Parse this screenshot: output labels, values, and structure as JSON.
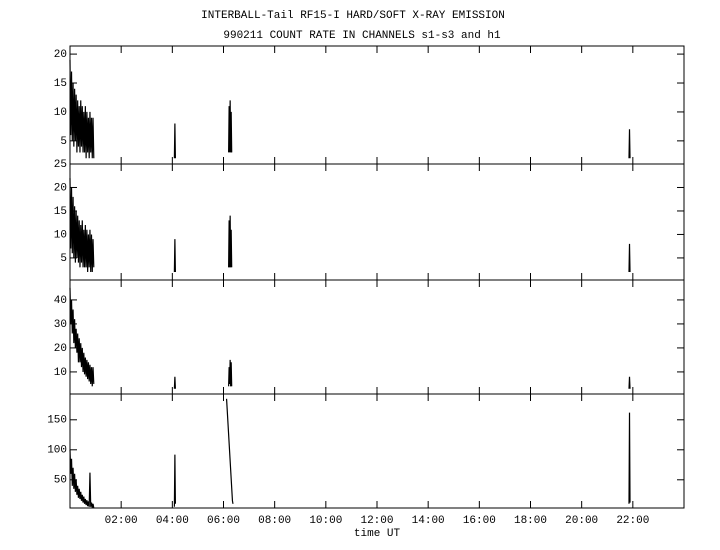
{
  "chart_data": [
    {
      "type": "line",
      "title": "INTERBALL-Tail RF15-I HARD/SOFT X-RAY EMISSION",
      "subtitle": "990211  COUNT RATE IN CHANNELS s1-s3 and h1",
      "xlim": [
        0,
        24
      ],
      "ylim": [
        1,
        21.4
      ],
      "yticks": [
        5,
        10,
        15,
        20
      ],
      "color": "#000000",
      "x": [
        0.0,
        0.03,
        0.06,
        0.09,
        0.12,
        0.15,
        0.18,
        0.21,
        0.24,
        0.27,
        0.3,
        0.33,
        0.36,
        0.39,
        0.42,
        0.45,
        0.48,
        0.51,
        0.54,
        0.57,
        0.6,
        0.63,
        0.66,
        0.69,
        0.72,
        0.75,
        0.78,
        0.81,
        0.84,
        0.87,
        0.9,
        0.93,
        1.0,
        4.08,
        4.1,
        4.12,
        5.0,
        6.2,
        6.22,
        6.24,
        6.26,
        6.28,
        6.3,
        6.32,
        10.0,
        21.85,
        21.87,
        21.89
      ],
      "values": [
        19,
        6,
        17,
        5,
        15,
        4,
        14,
        5,
        13,
        3,
        12,
        4,
        11,
        3,
        12,
        4,
        11,
        3,
        10,
        3,
        11,
        2,
        10,
        3,
        9,
        2,
        10,
        3,
        9,
        2,
        9,
        2,
        null,
        2,
        8,
        2,
        null,
        3,
        11,
        3,
        12,
        3,
        10,
        3,
        null,
        2,
        7,
        2
      ]
    },
    {
      "type": "line",
      "xlim": [
        0,
        24
      ],
      "ylim": [
        0.3,
        25
      ],
      "yticks": [
        5,
        10,
        15,
        20,
        25
      ],
      "color": "#000000",
      "x": [
        0.0,
        0.03,
        0.06,
        0.09,
        0.12,
        0.15,
        0.18,
        0.21,
        0.24,
        0.27,
        0.3,
        0.33,
        0.36,
        0.39,
        0.42,
        0.45,
        0.48,
        0.51,
        0.54,
        0.57,
        0.6,
        0.63,
        0.66,
        0.69,
        0.72,
        0.75,
        0.78,
        0.81,
        0.84,
        0.87,
        0.9,
        0.93,
        1.0,
        4.08,
        4.1,
        4.12,
        5.0,
        6.2,
        6.22,
        6.24,
        6.26,
        6.28,
        6.3,
        6.32,
        10.0,
        21.85,
        21.87,
        21.89
      ],
      "values": [
        22,
        7,
        20,
        6,
        18,
        5,
        16,
        4,
        15,
        5,
        14,
        4,
        13,
        3,
        12,
        4,
        13,
        3,
        11,
        3,
        12,
        3,
        11,
        2,
        10,
        3,
        11,
        2,
        10,
        2,
        9,
        3,
        null,
        2,
        9,
        2,
        null,
        3,
        13,
        3,
        14,
        3,
        11,
        3,
        null,
        2,
        8,
        2
      ]
    },
    {
      "type": "line",
      "xlim": [
        0,
        24
      ],
      "ylim": [
        0.8,
        48.3
      ],
      "yticks": [
        10,
        20,
        30,
        40
      ],
      "color": "#000000",
      "x": [
        0.0,
        0.03,
        0.06,
        0.09,
        0.12,
        0.15,
        0.18,
        0.21,
        0.24,
        0.27,
        0.3,
        0.33,
        0.36,
        0.39,
        0.42,
        0.45,
        0.48,
        0.51,
        0.54,
        0.57,
        0.6,
        0.63,
        0.66,
        0.69,
        0.72,
        0.75,
        0.78,
        0.81,
        0.84,
        0.87,
        0.9,
        0.93,
        1.0,
        4.08,
        4.1,
        4.12,
        5.0,
        6.2,
        6.22,
        6.24,
        6.26,
        6.28,
        6.3,
        6.32,
        10.0,
        21.85,
        21.87,
        21.89
      ],
      "values": [
        45,
        30,
        40,
        26,
        36,
        22,
        32,
        20,
        28,
        18,
        26,
        14,
        24,
        14,
        22,
        12,
        20,
        10,
        18,
        9,
        16,
        8,
        15,
        7,
        14,
        6,
        13,
        5,
        12,
        4,
        12,
        5,
        null,
        3,
        8,
        3,
        null,
        4,
        12,
        5,
        15,
        4,
        14,
        4,
        null,
        3,
        8,
        3
      ]
    },
    {
      "type": "line",
      "xlabel": "time UT",
      "xlim": [
        0,
        24
      ],
      "ylim": [
        3,
        193
      ],
      "yticks": [
        50,
        100,
        150
      ],
      "color": "#000000",
      "xticks": [
        {
          "value": 2,
          "label": "02:00"
        },
        {
          "value": 4,
          "label": "04:00"
        },
        {
          "value": 6,
          "label": "06:00"
        },
        {
          "value": 8,
          "label": "08:00"
        },
        {
          "value": 10,
          "label": "10:00"
        },
        {
          "value": 12,
          "label": "12:00"
        },
        {
          "value": 14,
          "label": "14:00"
        },
        {
          "value": 16,
          "label": "16:00"
        },
        {
          "value": 18,
          "label": "18:00"
        },
        {
          "value": 20,
          "label": "20:00"
        },
        {
          "value": 22,
          "label": "22:00"
        }
      ],
      "x": [
        0.0,
        0.03,
        0.06,
        0.09,
        0.12,
        0.15,
        0.18,
        0.21,
        0.24,
        0.27,
        0.3,
        0.33,
        0.36,
        0.39,
        0.42,
        0.45,
        0.48,
        0.51,
        0.54,
        0.57,
        0.6,
        0.63,
        0.66,
        0.69,
        0.72,
        0.75,
        0.78,
        0.81,
        0.84,
        0.87,
        0.9,
        0.93,
        1.0,
        4.08,
        4.1,
        4.12,
        5.0,
        6.12,
        6.35,
        6.37,
        10.0,
        21.85,
        21.87,
        21.89
      ],
      "values": [
        100,
        60,
        85,
        40,
        70,
        35,
        60,
        30,
        50,
        25,
        40,
        20,
        35,
        18,
        30,
        15,
        25,
        12,
        22,
        10,
        18,
        8,
        16,
        6,
        14,
        5,
        62,
        5,
        12,
        4,
        10,
        3,
        null,
        5,
        92,
        10,
        null,
        185,
        15,
        10,
        null,
        10,
        162,
        12
      ]
    }
  ]
}
